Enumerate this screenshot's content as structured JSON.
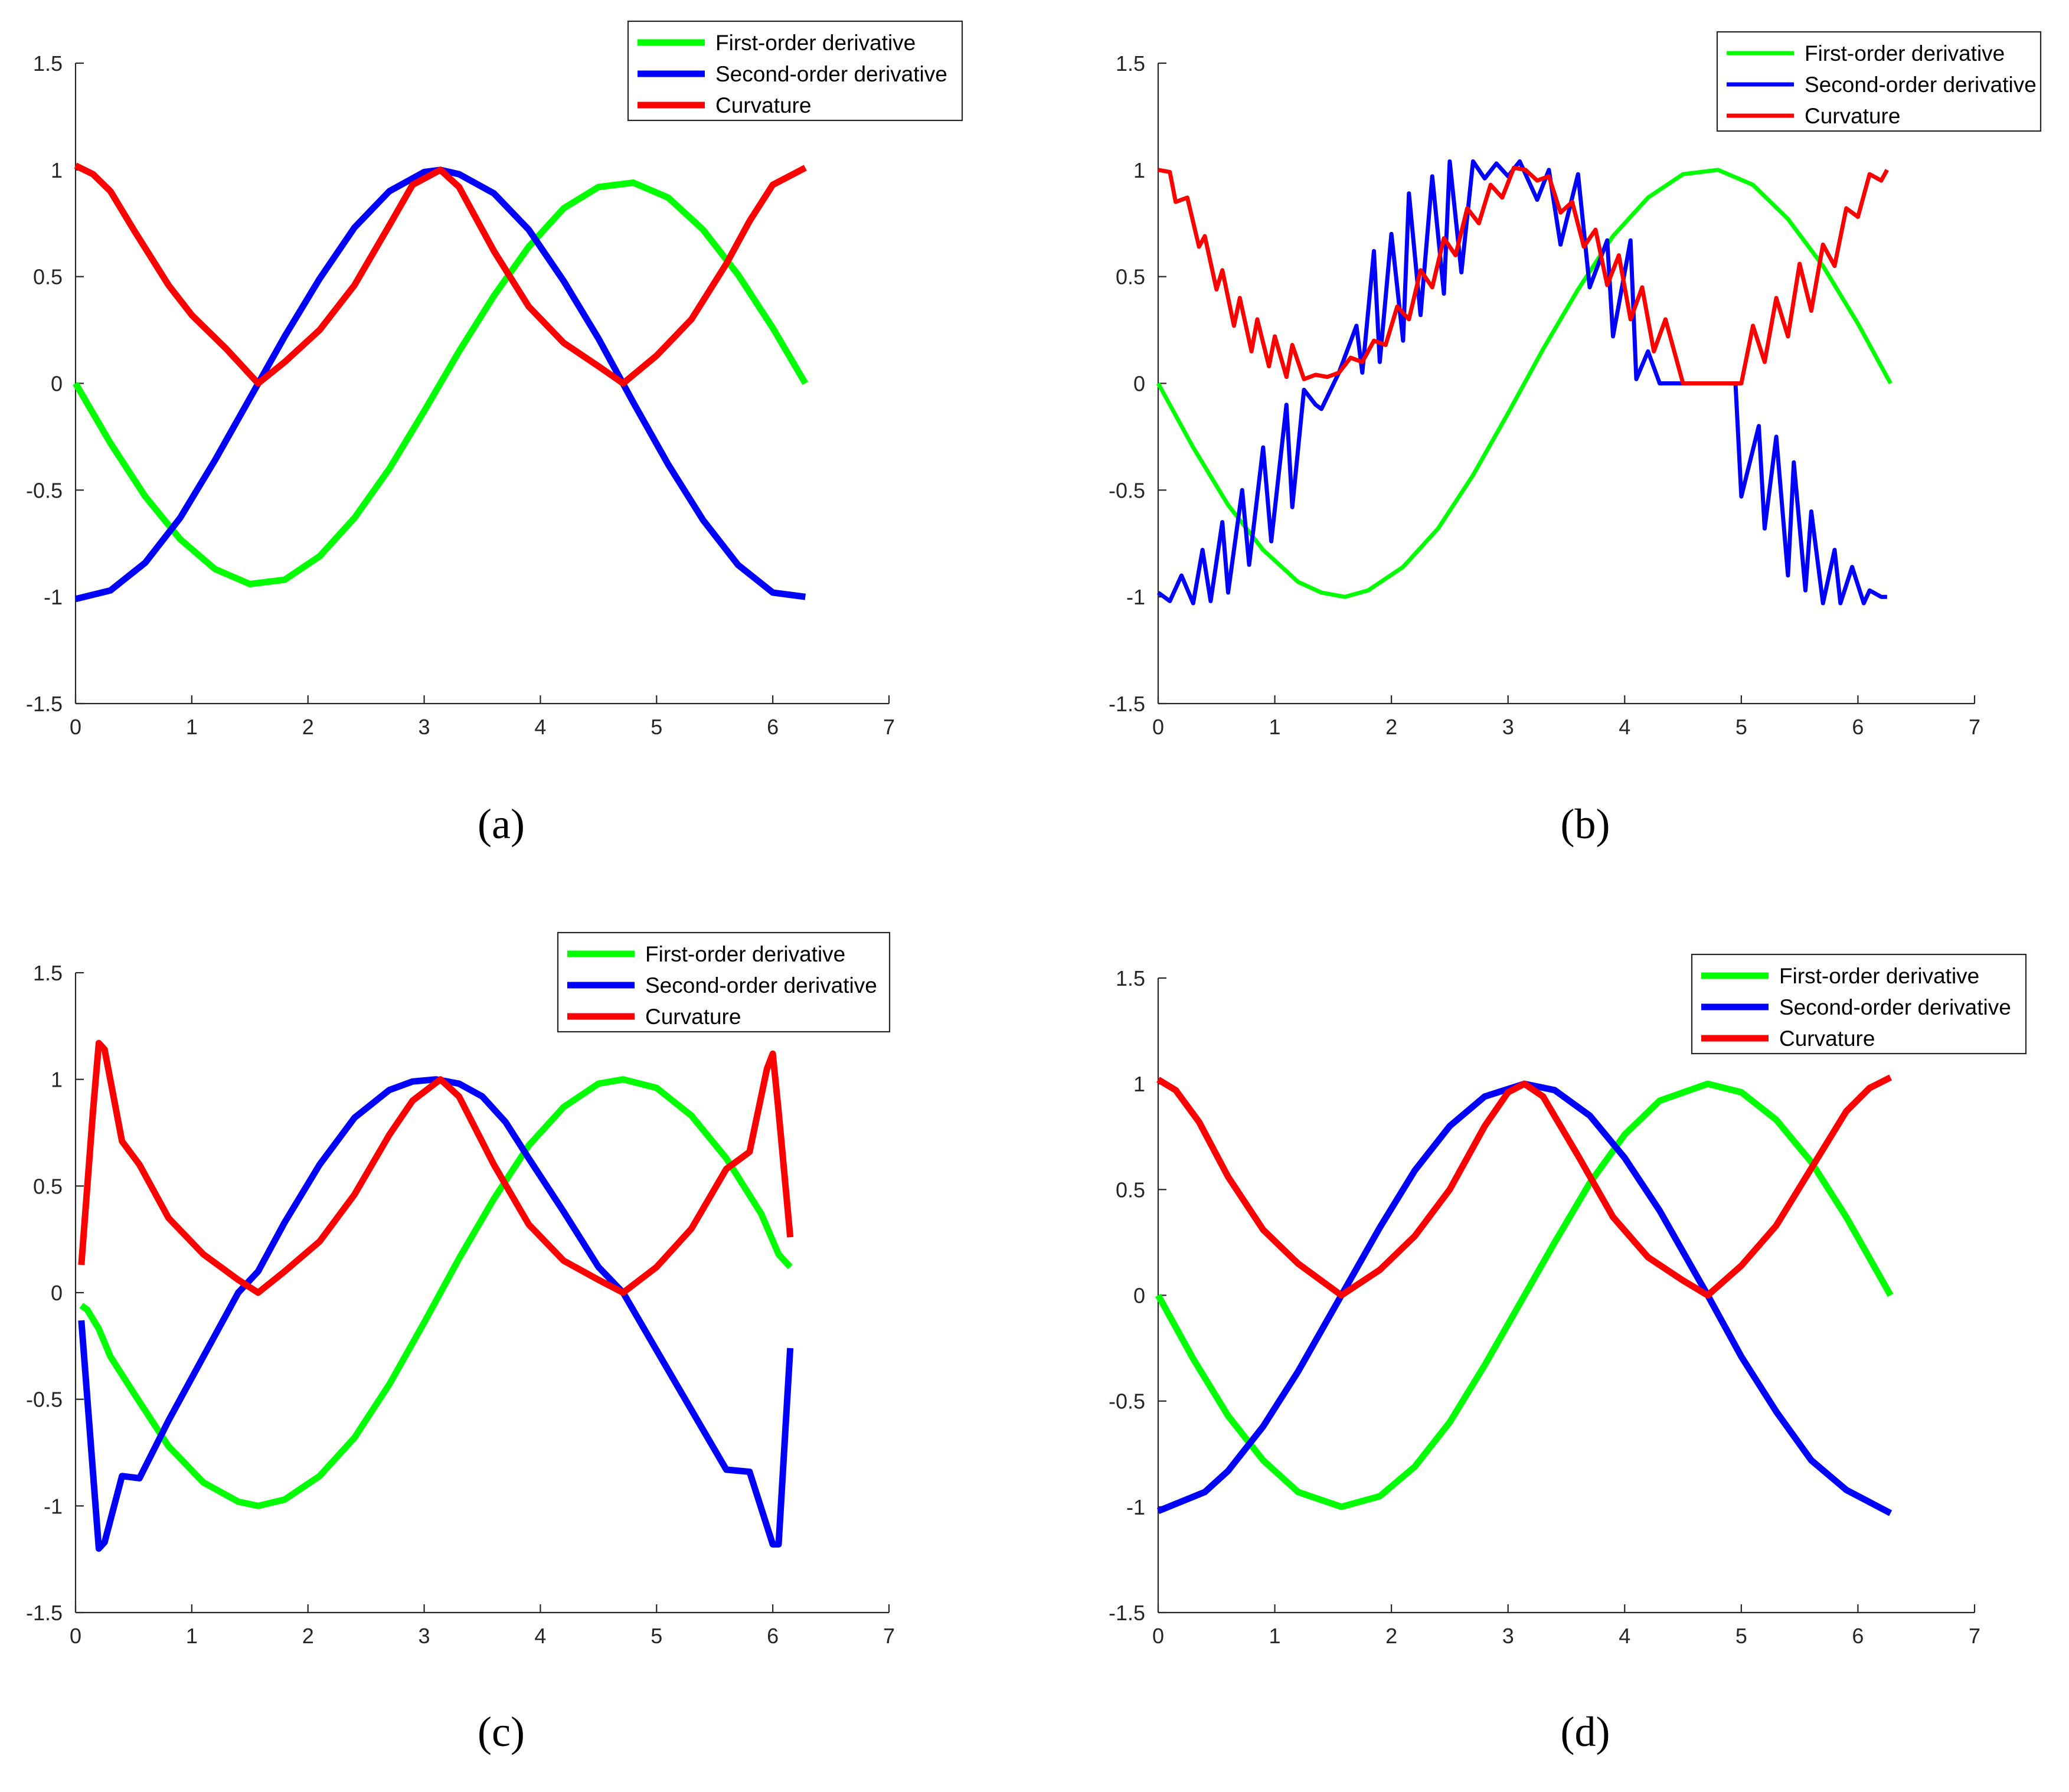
{
  "chart_data": [
    {
      "type": "line",
      "panel_label": "(a)",
      "xlim": [
        0,
        7
      ],
      "ylim": [
        -1.5,
        1.5
      ],
      "xticks": [
        "0",
        "1",
        "2",
        "3",
        "4",
        "5",
        "6",
        "7"
      ],
      "yticks": [
        "-1.5",
        "-1",
        "-0.5",
        "0",
        "0.5",
        "1",
        "1.5"
      ],
      "legend_position": "top-right",
      "series": [
        {
          "name": "First-order derivative",
          "color": "#00ff00",
          "x": [
            0,
            0.3,
            0.6,
            0.9,
            1.2,
            1.5,
            1.8,
            2.1,
            2.4,
            2.7,
            3.0,
            3.3,
            3.6,
            3.9,
            4.2,
            4.5,
            4.8,
            5.1,
            5.4,
            5.7,
            6.0,
            6.28
          ],
          "y": [
            0,
            -0.28,
            -0.53,
            -0.73,
            -0.87,
            -0.94,
            -0.92,
            -0.81,
            -0.63,
            -0.4,
            -0.13,
            0.15,
            0.41,
            0.64,
            0.82,
            0.92,
            0.94,
            0.87,
            0.72,
            0.51,
            0.26,
            0
          ]
        },
        {
          "name": "Second-order derivative",
          "color": "#0000ff",
          "x": [
            0,
            0.3,
            0.6,
            0.9,
            1.2,
            1.5,
            1.8,
            2.1,
            2.4,
            2.7,
            3.0,
            3.14,
            3.3,
            3.6,
            3.9,
            4.2,
            4.5,
            4.8,
            5.1,
            5.4,
            5.7,
            6.0,
            6.28
          ],
          "y": [
            -1.01,
            -0.97,
            -0.84,
            -0.63,
            -0.36,
            -0.07,
            0.22,
            0.49,
            0.73,
            0.9,
            0.99,
            1.0,
            0.98,
            0.89,
            0.72,
            0.48,
            0.21,
            -0.09,
            -0.38,
            -0.64,
            -0.85,
            -0.98,
            -1.0
          ]
        },
        {
          "name": "Curvature",
          "color": "#ff0000",
          "x": [
            0,
            0.15,
            0.3,
            0.5,
            0.8,
            1.0,
            1.3,
            1.571,
            1.8,
            2.1,
            2.4,
            2.7,
            2.9,
            3.14,
            3.3,
            3.6,
            3.9,
            4.2,
            4.5,
            4.712,
            5.0,
            5.3,
            5.6,
            5.8,
            6.0,
            6.28
          ],
          "y": [
            1.02,
            0.98,
            0.9,
            0.72,
            0.46,
            0.32,
            0.16,
            0,
            0.1,
            0.25,
            0.46,
            0.74,
            0.93,
            1.0,
            0.92,
            0.62,
            0.36,
            0.19,
            0.08,
            0,
            0.13,
            0.3,
            0.56,
            0.76,
            0.93,
            1.01
          ]
        }
      ]
    },
    {
      "type": "line",
      "panel_label": "(b)",
      "xlim": [
        0,
        7
      ],
      "ylim": [
        -1.5,
        1.5
      ],
      "xticks": [
        "0",
        "1",
        "2",
        "3",
        "4",
        "5",
        "6",
        "7"
      ],
      "yticks": [
        "-1.5",
        "-1",
        "-0.5",
        "0",
        "0.5",
        "1",
        "1.5"
      ],
      "legend_position": "top-right",
      "series": [
        {
          "name": "First-order derivative",
          "color": "#00ff00",
          "x": [
            0,
            0.3,
            0.6,
            0.9,
            1.2,
            1.4,
            1.6,
            1.8,
            2.1,
            2.4,
            2.7,
            3.0,
            3.3,
            3.6,
            3.9,
            4.2,
            4.5,
            4.8,
            5.1,
            5.4,
            5.7,
            6.0,
            6.28
          ],
          "y": [
            0,
            -0.3,
            -0.57,
            -0.78,
            -0.93,
            -0.98,
            -1.0,
            -0.97,
            -0.86,
            -0.68,
            -0.43,
            -0.14,
            0.16,
            0.44,
            0.69,
            0.87,
            0.98,
            1.0,
            0.93,
            0.77,
            0.55,
            0.28,
            0
          ]
        },
        {
          "name": "Second-order derivative",
          "color": "#0000ff",
          "x": [
            0,
            0.1,
            0.2,
            0.3,
            0.38,
            0.45,
            0.55,
            0.6,
            0.72,
            0.78,
            0.9,
            0.97,
            1.1,
            1.15,
            1.25,
            1.35,
            1.4,
            1.55,
            1.7,
            1.75,
            1.85,
            1.9,
            2.0,
            2.1,
            2.15,
            2.25,
            2.35,
            2.45,
            2.5,
            2.6,
            2.7,
            2.8,
            2.9,
            3.0,
            3.1,
            3.25,
            3.35,
            3.45,
            3.6,
            3.7,
            3.85,
            3.9,
            4.05,
            4.1,
            4.2,
            4.3,
            4.45,
            4.6,
            4.75,
            4.85,
            4.95,
            5.0,
            5.15,
            5.2,
            5.3,
            5.4,
            5.45,
            5.55,
            5.6,
            5.7,
            5.8,
            5.85,
            5.95,
            6.05,
            6.1,
            6.2,
            6.25
          ],
          "y": [
            -0.98,
            -1.02,
            -0.9,
            -1.03,
            -0.78,
            -1.02,
            -0.65,
            -0.98,
            -0.5,
            -0.85,
            -0.3,
            -0.74,
            -0.1,
            -0.58,
            -0.03,
            -0.1,
            -0.12,
            0.05,
            0.27,
            0.05,
            0.62,
            0.1,
            0.7,
            0.2,
            0.89,
            0.32,
            0.97,
            0.42,
            1.04,
            0.52,
            1.04,
            0.96,
            1.03,
            0.97,
            1.04,
            0.86,
            1.0,
            0.65,
            0.98,
            0.45,
            0.67,
            0.22,
            0.67,
            0.02,
            0.15,
            0.0,
            0.0,
            0.0,
            0.0,
            0.0,
            0.0,
            -0.53,
            -0.2,
            -0.68,
            -0.25,
            -0.9,
            -0.37,
            -0.97,
            -0.6,
            -1.03,
            -0.78,
            -1.03,
            -0.86,
            -1.03,
            -0.97,
            -1.0,
            -1.0
          ]
        },
        {
          "name": "Curvature",
          "color": "#ff0000",
          "x": [
            0,
            0.1,
            0.15,
            0.25,
            0.35,
            0.4,
            0.5,
            0.55,
            0.65,
            0.7,
            0.8,
            0.85,
            0.95,
            1.0,
            1.1,
            1.15,
            1.25,
            1.35,
            1.45,
            1.55,
            1.65,
            1.75,
            1.85,
            1.95,
            2.05,
            2.15,
            2.25,
            2.35,
            2.45,
            2.55,
            2.65,
            2.75,
            2.85,
            2.95,
            3.05,
            3.15,
            3.25,
            3.35,
            3.45,
            3.55,
            3.65,
            3.75,
            3.85,
            3.95,
            4.05,
            4.15,
            4.25,
            4.35,
            4.5,
            4.7,
            4.85,
            5.0,
            5.1,
            5.2,
            5.3,
            5.4,
            5.5,
            5.6,
            5.7,
            5.8,
            5.9,
            6.0,
            6.1,
            6.2,
            6.25
          ],
          "y": [
            1.0,
            0.99,
            0.85,
            0.87,
            0.64,
            0.69,
            0.44,
            0.53,
            0.27,
            0.4,
            0.15,
            0.3,
            0.08,
            0.22,
            0.03,
            0.18,
            0.02,
            0.04,
            0.03,
            0.05,
            0.12,
            0.1,
            0.2,
            0.18,
            0.36,
            0.3,
            0.53,
            0.45,
            0.68,
            0.6,
            0.82,
            0.75,
            0.93,
            0.87,
            1.01,
            1.0,
            0.95,
            0.97,
            0.8,
            0.85,
            0.64,
            0.72,
            0.46,
            0.6,
            0.3,
            0.45,
            0.15,
            0.3,
            0.0,
            0.0,
            0.0,
            0.0,
            0.27,
            0.1,
            0.4,
            0.22,
            0.56,
            0.34,
            0.65,
            0.55,
            0.82,
            0.78,
            0.98,
            0.95,
            1.0
          ]
        }
      ]
    },
    {
      "type": "line",
      "panel_label": "(c)",
      "xlim": [
        0,
        7
      ],
      "ylim": [
        -1.5,
        1.5
      ],
      "xticks": [
        "0",
        "1",
        "2",
        "3",
        "4",
        "5",
        "6",
        "7"
      ],
      "yticks": [
        "-1.5",
        "-1",
        "-0.5",
        "0",
        "0.5",
        "1",
        "1.5"
      ],
      "legend_position": "top-right",
      "series": [
        {
          "name": "First-order derivative",
          "color": "#00ff00",
          "x": [
            0.05,
            0.1,
            0.2,
            0.3,
            0.5,
            0.8,
            1.1,
            1.4,
            1.571,
            1.8,
            2.1,
            2.4,
            2.7,
            3.0,
            3.3,
            3.6,
            3.9,
            4.2,
            4.5,
            4.712,
            5.0,
            5.3,
            5.6,
            5.9,
            6.05,
            6.15
          ],
          "y": [
            -0.06,
            -0.08,
            -0.17,
            -0.3,
            -0.47,
            -0.72,
            -0.89,
            -0.98,
            -1.0,
            -0.97,
            -0.86,
            -0.68,
            -0.43,
            -0.14,
            0.16,
            0.44,
            0.69,
            0.87,
            0.98,
            1.0,
            0.96,
            0.83,
            0.63,
            0.37,
            0.18,
            0.12
          ]
        },
        {
          "name": "Second-order derivative",
          "color": "#0000ff",
          "x": [
            0.05,
            0.2,
            0.25,
            0.4,
            0.55,
            0.8,
            1.1,
            1.4,
            1.571,
            1.8,
            2.1,
            2.4,
            2.7,
            2.9,
            3.1,
            3.3,
            3.5,
            3.7,
            3.9,
            4.2,
            4.5,
            4.712,
            5.0,
            5.3,
            5.6,
            5.8,
            6.0,
            6.05,
            6.15
          ],
          "y": [
            -0.13,
            -1.2,
            -1.17,
            -0.86,
            -0.87,
            -0.6,
            -0.3,
            0.0,
            0.1,
            0.33,
            0.6,
            0.82,
            0.95,
            0.99,
            1.0,
            0.98,
            0.92,
            0.8,
            0.63,
            0.38,
            0.12,
            0.0,
            -0.27,
            -0.55,
            -0.83,
            -0.84,
            -1.18,
            -1.18,
            -0.26
          ]
        },
        {
          "name": "Curvature",
          "color": "#ff0000",
          "x": [
            0.05,
            0.15,
            0.2,
            0.25,
            0.4,
            0.55,
            0.8,
            1.1,
            1.4,
            1.571,
            1.8,
            2.1,
            2.4,
            2.7,
            2.9,
            3.14,
            3.3,
            3.6,
            3.9,
            4.2,
            4.5,
            4.712,
            5.0,
            5.3,
            5.6,
            5.8,
            5.95,
            6.0,
            6.05,
            6.15
          ],
          "y": [
            0.13,
            0.85,
            1.17,
            1.14,
            0.71,
            0.6,
            0.35,
            0.18,
            0.06,
            0.0,
            0.1,
            0.24,
            0.46,
            0.74,
            0.9,
            1.0,
            0.92,
            0.6,
            0.32,
            0.15,
            0.06,
            0.0,
            0.12,
            0.3,
            0.58,
            0.66,
            1.05,
            1.12,
            0.85,
            0.26
          ]
        }
      ]
    },
    {
      "type": "line",
      "panel_label": "(d)",
      "xlim": [
        0,
        7
      ],
      "ylim": [
        -1.5,
        1.5
      ],
      "xticks": [
        "0",
        "1",
        "2",
        "3",
        "4",
        "5",
        "6",
        "7"
      ],
      "yticks": [
        "-1.5",
        "-1",
        "-0.5",
        "0",
        "0.5",
        "1",
        "1.5"
      ],
      "legend_position": "top-right",
      "series": [
        {
          "name": "First-order derivative",
          "color": "#00ff00",
          "x": [
            0,
            0.3,
            0.6,
            0.9,
            1.2,
            1.571,
            1.9,
            2.2,
            2.5,
            2.8,
            3.1,
            3.4,
            3.7,
            4.0,
            4.3,
            4.712,
            5.0,
            5.3,
            5.6,
            5.9,
            6.28
          ],
          "y": [
            0,
            -0.3,
            -0.57,
            -0.78,
            -0.93,
            -1.0,
            -0.95,
            -0.81,
            -0.6,
            -0.33,
            -0.04,
            0.25,
            0.53,
            0.76,
            0.92,
            1.0,
            0.96,
            0.83,
            0.63,
            0.37,
            0
          ]
        },
        {
          "name": "Second-order derivative",
          "color": "#0000ff",
          "x": [
            0,
            0.4,
            0.6,
            0.9,
            1.2,
            1.571,
            1.9,
            2.2,
            2.5,
            2.8,
            3.14,
            3.4,
            3.7,
            4.0,
            4.3,
            4.712,
            5.0,
            5.3,
            5.6,
            5.9,
            6.28
          ],
          "y": [
            -1.02,
            -0.93,
            -0.83,
            -0.62,
            -0.36,
            0.0,
            0.32,
            0.59,
            0.8,
            0.94,
            1.0,
            0.97,
            0.85,
            0.65,
            0.4,
            0.0,
            -0.29,
            -0.55,
            -0.78,
            -0.92,
            -1.03
          ]
        },
        {
          "name": "Curvature",
          "color": "#ff0000",
          "x": [
            0,
            0.15,
            0.35,
            0.6,
            0.9,
            1.2,
            1.571,
            1.9,
            2.2,
            2.5,
            2.8,
            3.0,
            3.14,
            3.3,
            3.6,
            3.9,
            4.2,
            4.5,
            4.712,
            5.0,
            5.3,
            5.6,
            5.9,
            6.1,
            6.28
          ],
          "y": [
            1.02,
            0.97,
            0.82,
            0.56,
            0.31,
            0.15,
            0.0,
            0.12,
            0.28,
            0.5,
            0.8,
            0.96,
            1.0,
            0.94,
            0.66,
            0.37,
            0.18,
            0.07,
            0.0,
            0.14,
            0.33,
            0.6,
            0.87,
            0.98,
            1.03
          ]
        }
      ]
    }
  ]
}
